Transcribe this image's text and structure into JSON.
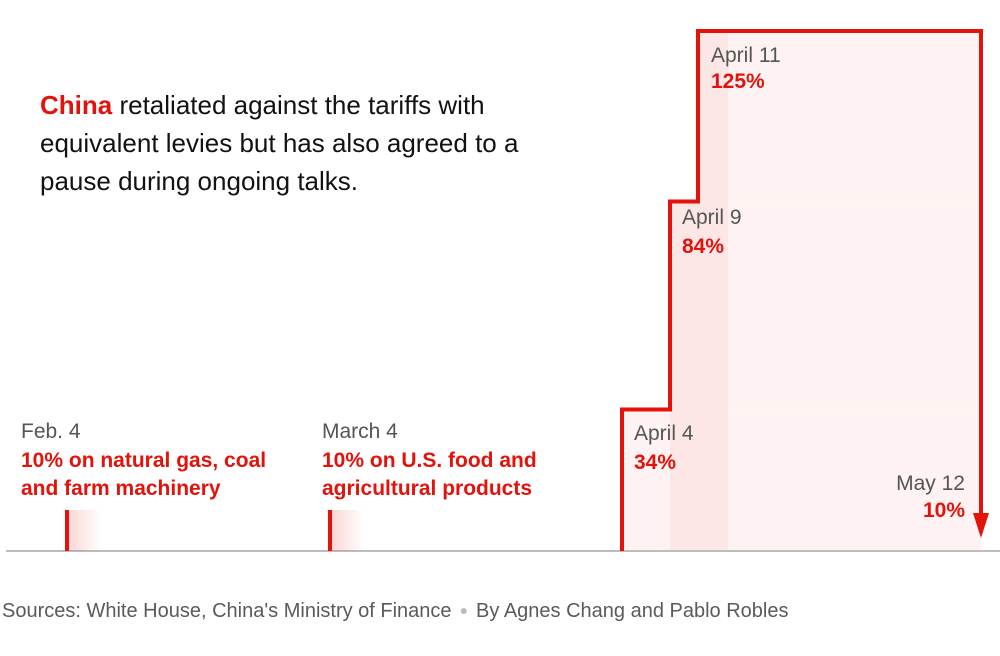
{
  "intro": {
    "highlight": "China",
    "text": " retaliated against the tariffs with equivalent levies but has also agreed to a pause during ongoing talks."
  },
  "footer": {
    "sources": "Sources: White House, China's Ministry of Finance",
    "byline": "By Agnes Chang and Pablo Robles"
  },
  "colors": {
    "accent": "#e3120b",
    "fill": "#fde9e8",
    "axis": "#bdbdbd",
    "date": "#555555"
  },
  "chart_data": {
    "type": "line",
    "step": true,
    "series": [
      {
        "x": [
          "April 4",
          "April 9",
          "April 11",
          "May 12"
        ],
        "y": [
          34,
          84,
          125,
          10
        ],
        "arrow_end": true
      }
    ],
    "annotations": [
      {
        "id": "feb4",
        "date": "Feb. 4",
        "value": "10% on natural gas, coal and farm machinery",
        "lines": [
          "10% on natural gas, coal",
          "and farm machinery"
        ]
      },
      {
        "id": "mar4",
        "date": "March 4",
        "value": "10% on U.S. food and agricultural products",
        "lines": [
          "10% on U.S. food and",
          "agricultural products"
        ]
      },
      {
        "id": "apr4",
        "date": "April 4",
        "value": "34%"
      },
      {
        "id": "apr9",
        "date": "April 9",
        "value": "84%"
      },
      {
        "id": "apr11",
        "date": "April 11",
        "value": "125%"
      },
      {
        "id": "may12",
        "date": "May 12",
        "value": "10%"
      }
    ]
  }
}
